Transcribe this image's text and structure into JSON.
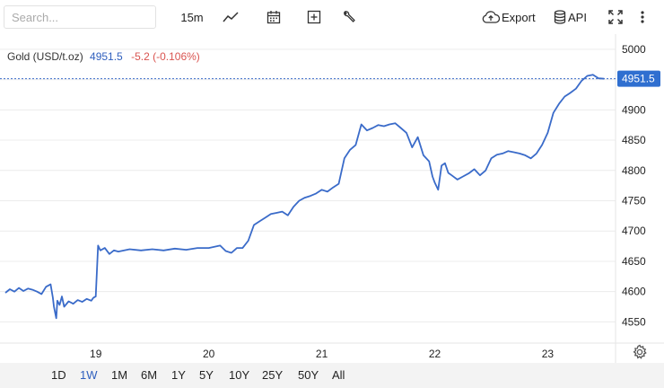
{
  "toolbar": {
    "search_placeholder": "Search...",
    "interval": "15m",
    "icons": [
      "line-chart-icon",
      "calendar-icon",
      "plus-square-icon",
      "wrench-icon",
      "cloud-upload-icon",
      "database-icon",
      "fullscreen-icon",
      "more-vertical-icon"
    ],
    "export_label": "Export",
    "api_label": "API"
  },
  "legend": {
    "symbol": "Gold (USD/t.oz)",
    "last": "4951.5",
    "change": "-5.2 (-0.106%)",
    "change_color": "#d9534f",
    "last_color": "#2f5fbe"
  },
  "ranges": {
    "items": [
      "1D",
      "1W",
      "1M",
      "6M",
      "1Y",
      "5Y",
      "10Y",
      "25Y",
      "50Y",
      "All"
    ],
    "active": "1W"
  },
  "chart_data": {
    "type": "line",
    "title": "Gold (USD/t.oz)",
    "xlabel": "",
    "ylabel": "",
    "ylim": [
      4515,
      5025
    ],
    "xlim": [
      18.2,
      23.6
    ],
    "yticks": [
      4550,
      4600,
      4650,
      4700,
      4750,
      4800,
      4850,
      4900,
      4950,
      5000
    ],
    "xticks": [
      19,
      20,
      21,
      22,
      23
    ],
    "xtick_labels": [
      "19",
      "20",
      "21",
      "22",
      "23"
    ],
    "last_price": 4951.5,
    "line_color": "#3a6bc9",
    "grid": "horizontal",
    "series": [
      {
        "name": "",
        "x": [
          18.2,
          18.24,
          18.28,
          18.32,
          18.36,
          18.4,
          18.44,
          18.48,
          18.52,
          18.56,
          18.6,
          18.62,
          18.63,
          18.65,
          18.66,
          18.68,
          18.7,
          18.72,
          18.76,
          18.8,
          18.84,
          18.88,
          18.92,
          18.96,
          18.98,
          19.0,
          19.02,
          19.04,
          19.08,
          19.12,
          19.16,
          19.2,
          19.3,
          19.4,
          19.5,
          19.6,
          19.7,
          19.8,
          19.9,
          20.0,
          20.1,
          20.15,
          20.2,
          20.25,
          20.3,
          20.35,
          20.4,
          20.45,
          20.5,
          20.55,
          20.6,
          20.65,
          20.7,
          20.75,
          20.8,
          20.85,
          20.9,
          20.95,
          21.0,
          21.05,
          21.1,
          21.15,
          21.2,
          21.25,
          21.3,
          21.35,
          21.4,
          21.45,
          21.5,
          21.55,
          21.6,
          21.65,
          21.7,
          21.75,
          21.8,
          21.85,
          21.9,
          21.95,
          21.98,
          22.0,
          22.03,
          22.06,
          22.09,
          22.12,
          22.15,
          22.2,
          22.25,
          22.3,
          22.35,
          22.4,
          22.45,
          22.5,
          22.55,
          22.6,
          22.65,
          22.7,
          22.75,
          22.8,
          22.85,
          22.9,
          22.95,
          23.0,
          23.05,
          23.1,
          23.15,
          23.2,
          23.25,
          23.3,
          23.35,
          23.4,
          23.45,
          23.5
        ],
        "y": [
          4598,
          4604,
          4600,
          4606,
          4601,
          4605,
          4603,
          4600,
          4596,
          4608,
          4612,
          4590,
          4575,
          4556,
          4585,
          4578,
          4592,
          4575,
          4584,
          4580,
          4586,
          4583,
          4588,
          4585,
          4590,
          4592,
          4676,
          4668,
          4672,
          4662,
          4668,
          4666,
          4670,
          4668,
          4670,
          4668,
          4671,
          4669,
          4672,
          4672,
          4676,
          4667,
          4664,
          4672,
          4672,
          4684,
          4710,
          4716,
          4722,
          4728,
          4730,
          4732,
          4726,
          4740,
          4750,
          4755,
          4758,
          4762,
          4768,
          4765,
          4772,
          4778,
          4820,
          4834,
          4842,
          4876,
          4866,
          4870,
          4875,
          4873,
          4876,
          4878,
          4870,
          4862,
          4838,
          4855,
          4825,
          4815,
          4790,
          4780,
          4768,
          4808,
          4812,
          4796,
          4792,
          4785,
          4790,
          4795,
          4802,
          4792,
          4800,
          4820,
          4826,
          4828,
          4832,
          4830,
          4828,
          4825,
          4820,
          4828,
          4842,
          4862,
          4895,
          4910,
          4922,
          4928,
          4935,
          4948,
          4956,
          4958,
          4952,
          4951.5
        ]
      }
    ]
  }
}
